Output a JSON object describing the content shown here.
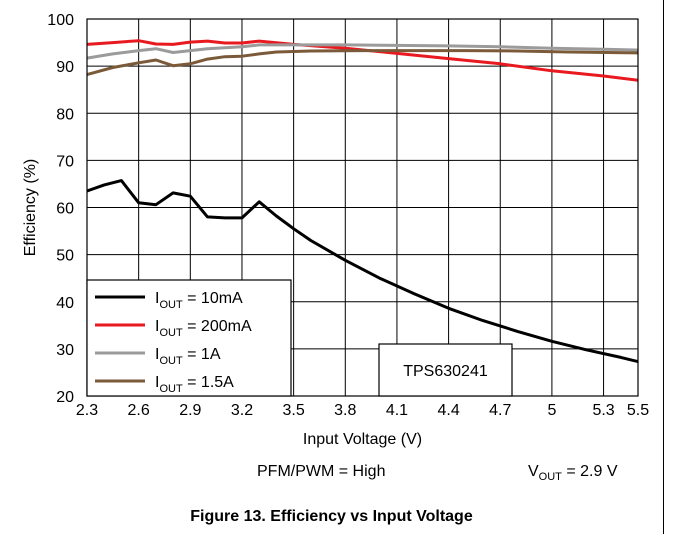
{
  "chart_data": {
    "type": "line",
    "xlabel": "Input Voltage (V)",
    "ylabel": "Efficiency (%)",
    "xlim": [
      2.3,
      5.5
    ],
    "ylim": [
      20,
      100
    ],
    "xticks": [
      2.3,
      2.6,
      2.9,
      3.2,
      3.5,
      3.8,
      4.1,
      4.4,
      4.7,
      5,
      5.3,
      5.5
    ],
    "xtick_labels": [
      "2.3",
      "2.6",
      "2.9",
      "3.2",
      "3.5",
      "3.8",
      "4.1",
      "4.4",
      "4.7",
      "5",
      "5.3",
      "5.5"
    ],
    "yticks": [
      20,
      30,
      40,
      50,
      60,
      70,
      80,
      90,
      100
    ],
    "ytick_labels": [
      "20",
      "30",
      "40",
      "50",
      "60",
      "70",
      "80",
      "90",
      "100"
    ],
    "grid": true,
    "legend_position": "bottom-left",
    "annotation_box": "TPS630241",
    "series": [
      {
        "name_main": "I",
        "name_sub": "OUT",
        "name_rest": " = 10mA",
        "color": "#000000",
        "points": [
          [
            2.3,
            63.5
          ],
          [
            2.4,
            64.8
          ],
          [
            2.5,
            65.7
          ],
          [
            2.6,
            61.0
          ],
          [
            2.7,
            60.6
          ],
          [
            2.8,
            63.1
          ],
          [
            2.9,
            62.4
          ],
          [
            3.0,
            58.0
          ],
          [
            3.1,
            57.8
          ],
          [
            3.2,
            57.8
          ],
          [
            3.3,
            61.2
          ],
          [
            3.4,
            58.2
          ],
          [
            3.5,
            55.5
          ],
          [
            3.6,
            53.0
          ],
          [
            3.8,
            48.8
          ],
          [
            4.0,
            45.0
          ],
          [
            4.2,
            41.7
          ],
          [
            4.4,
            38.6
          ],
          [
            4.6,
            36.0
          ],
          [
            4.8,
            33.7
          ],
          [
            5.0,
            31.6
          ],
          [
            5.2,
            29.8
          ],
          [
            5.4,
            28.2
          ],
          [
            5.5,
            27.3
          ]
        ]
      },
      {
        "name_main": "I",
        "name_sub": "OUT",
        "name_rest": " = 200mA",
        "color": "#e8191f",
        "points": [
          [
            2.3,
            94.6
          ],
          [
            2.45,
            95.0
          ],
          [
            2.6,
            95.4
          ],
          [
            2.7,
            94.7
          ],
          [
            2.8,
            94.6
          ],
          [
            2.9,
            95.1
          ],
          [
            3.0,
            95.3
          ],
          [
            3.1,
            94.9
          ],
          [
            3.2,
            94.9
          ],
          [
            3.3,
            95.3
          ],
          [
            3.5,
            94.6
          ],
          [
            3.8,
            93.8
          ],
          [
            4.1,
            92.7
          ],
          [
            4.4,
            91.6
          ],
          [
            4.7,
            90.5
          ],
          [
            5.0,
            89.0
          ],
          [
            5.3,
            87.9
          ],
          [
            5.5,
            87.0
          ]
        ]
      },
      {
        "name_main": "I",
        "name_sub": "OUT",
        "name_rest": " = 1A",
        "color": "#9b9b9b",
        "points": [
          [
            2.3,
            91.7
          ],
          [
            2.45,
            92.6
          ],
          [
            2.6,
            93.3
          ],
          [
            2.7,
            93.7
          ],
          [
            2.8,
            92.9
          ],
          [
            2.9,
            93.3
          ],
          [
            3.0,
            93.7
          ],
          [
            3.2,
            94.1
          ],
          [
            3.3,
            94.5
          ],
          [
            3.5,
            94.5
          ],
          [
            3.8,
            94.5
          ],
          [
            4.1,
            94.4
          ],
          [
            4.4,
            94.3
          ],
          [
            4.7,
            94.1
          ],
          [
            5.0,
            93.8
          ],
          [
            5.3,
            93.6
          ],
          [
            5.5,
            93.4
          ]
        ]
      },
      {
        "name_main": "I",
        "name_sub": "OUT",
        "name_rest": " = 1.5A",
        "color": "#7b5a3a",
        "points": [
          [
            2.3,
            88.2
          ],
          [
            2.45,
            89.7
          ],
          [
            2.6,
            90.7
          ],
          [
            2.7,
            91.3
          ],
          [
            2.8,
            90.1
          ],
          [
            2.9,
            90.5
          ],
          [
            3.0,
            91.5
          ],
          [
            3.1,
            92.0
          ],
          [
            3.2,
            92.1
          ],
          [
            3.3,
            92.6
          ],
          [
            3.4,
            93.0
          ],
          [
            3.6,
            93.2
          ],
          [
            3.9,
            93.3
          ],
          [
            4.2,
            93.3
          ],
          [
            4.5,
            93.3
          ],
          [
            4.8,
            93.2
          ],
          [
            5.1,
            93.0
          ],
          [
            5.5,
            92.8
          ]
        ]
      }
    ]
  },
  "conditions": {
    "left": "PFM/PWM = High",
    "right_main": "V",
    "right_sub": "OUT",
    "right_rest": " = 2.9 V"
  },
  "caption": "Figure 13. Efficiency vs Input Voltage"
}
